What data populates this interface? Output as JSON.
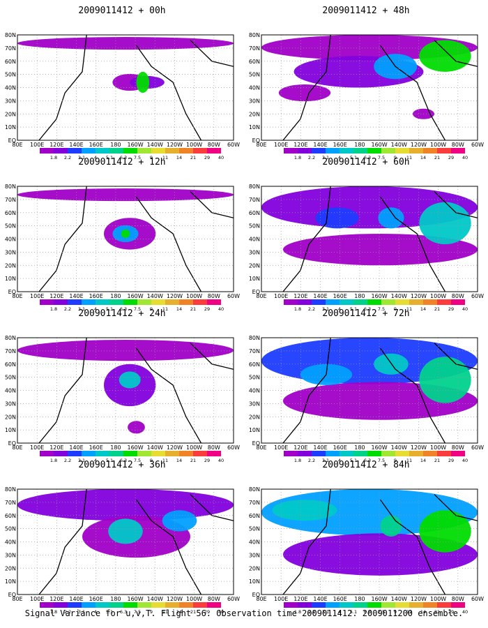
{
  "chart_data": [
    {
      "type": "heatmap",
      "title": "2009011412 + 00h"
    },
    {
      "type": "heatmap",
      "title": "2009011412 + 48h"
    },
    {
      "type": "heatmap",
      "title": "2009011412 + 12h"
    },
    {
      "type": "heatmap",
      "title": "2009011412 + 60h"
    },
    {
      "type": "heatmap",
      "title": "2009011412 + 24h"
    },
    {
      "type": "heatmap",
      "title": "2009011412 + 72h"
    },
    {
      "type": "heatmap",
      "title": "2009011412 + 36h"
    },
    {
      "type": "heatmap",
      "title": "2009011412 + 84h"
    }
  ],
  "x_ticks": [
    "80E",
    "100E",
    "120E",
    "140E",
    "160E",
    "180",
    "160W",
    "140W",
    "120W",
    "100W",
    "80W",
    "60W"
  ],
  "y_ticks": [
    "80N",
    "70N",
    "60N",
    "50N",
    "40N",
    "30N",
    "20N",
    "10N",
    "EQ"
  ],
  "colorbar": {
    "labels": [
      "1.8",
      "2.2",
      "3.1",
      "4",
      "5.1",
      "6.3",
      "7.5",
      "9",
      "11",
      "14",
      "21",
      "29",
      "40"
    ],
    "colors": [
      "#a000c8",
      "#8200dc",
      "#1e3cff",
      "#00a0ff",
      "#00c8c8",
      "#00d28c",
      "#00dc00",
      "#a0e632",
      "#e6dc32",
      "#e6af2d",
      "#f08228",
      "#fa3c3c",
      "#f00082"
    ]
  },
  "footer": "Signal Variance for u,v,T. Flight 56. Observation time 2009011412. 2009011200 ensemble."
}
